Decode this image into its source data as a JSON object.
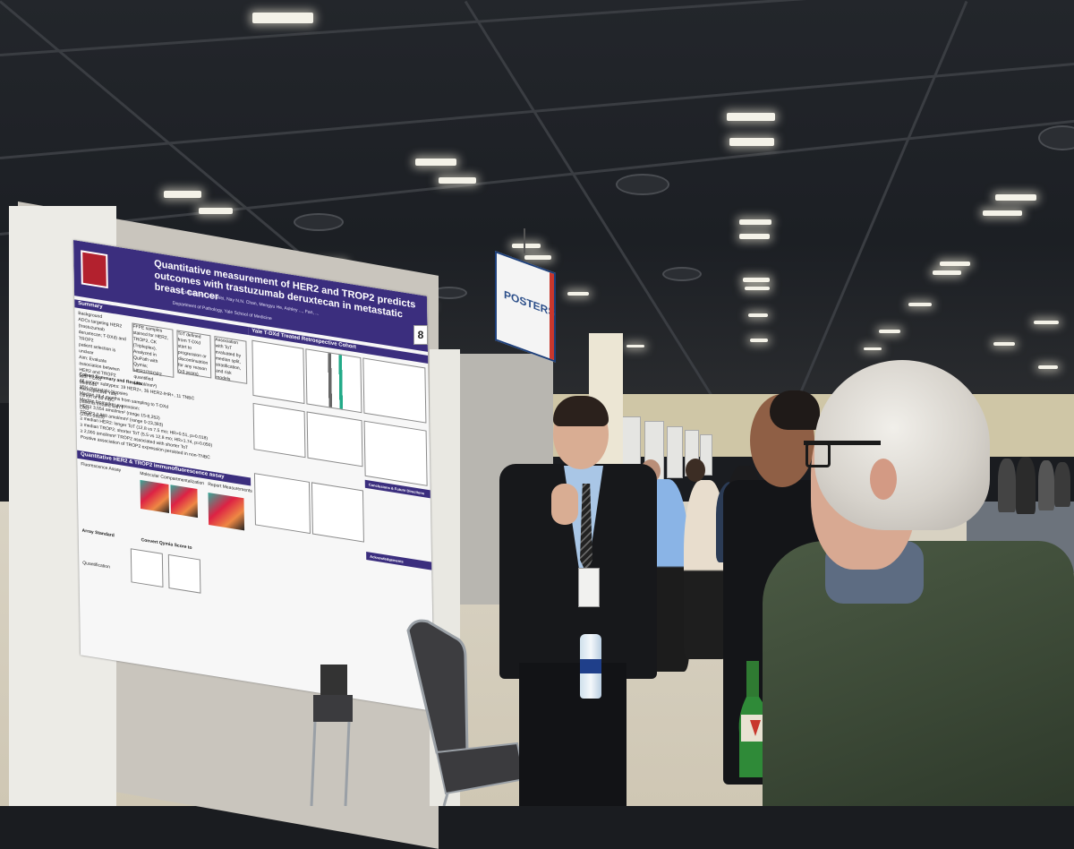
{
  "scene": {
    "board_number": "8",
    "hanging_sign": "POSTERS"
  },
  "poster": {
    "title": "Quantitative measurement of HER2 and TROP2 predicts outcomes with trastuzumab deruxtecan in metastatic breast cancer",
    "authors": "C. Jack Robbins, Wei Wei, Nay N.N. Chan, Mengyu He, Ashley ..., Fan, ...",
    "affiliation": "Department of Pathology, Yale School of Medicine",
    "sections": {
      "summary": "Summary",
      "yale_cohort": "Yale T-DXd Treated Retrospective Cohort",
      "assay": "Quantitative HER2 & TROP2 immunofluorescence assay",
      "conclusions": "Conclusions & Future Directions",
      "acknowledgements": "Acknowledgements"
    },
    "left_column": [
      "Background",
      "ADCs targeting HER2 (trastuzumab deruxtecan; T-DXd) and TROP2",
      "patient selection is unclear",
      "Aim: Evaluate association between HER2 and TROP2",
      "with T-DXd",
      "Methods",
      "Retrospective Yale cohort of 65 mBC",
      "patients treated with T-DXd",
      "(2020-2023)",
      "Cohort Summary and Results",
      "All cancer subtypes: 19 HER2+, 35 HER2-/HR+, 11 TNBC",
      "35% metastatic biopsies",
      "Median 18.4 months from sampling to T-DXd",
      "Median biomarker expression:",
      "HER2 3,554 amol/mm² (range 15-8,252)",
      "TROP2 2,868 amol/mm² (range 0-23,383)",
      "≥ median HER2: longer ToT (12.8 vs 7.5 mo; HR=0.51, p=0.018)",
      "≥ median TROP2: shorter ToT (5.5 vs 12.8 mo; HR=1.74, p=0.050)",
      "≥ 2,000 amol/mm² TROP2 associated with shorter ToT",
      "Positive association of TROP2 expression persisted in non-TNBC"
    ],
    "assay_labels": {
      "fluorescence": "Fluorescence Assay",
      "compartment": "Molecular Compartmentalization",
      "report": "Report Measurements",
      "standard": "Array Standard",
      "convert": "Convert Qymia Score to",
      "quant": "Quantification"
    },
    "flow": {
      "ffpe": "FFPE samples stained for HER2, TROP2, CK (Tripleplex). Analyzed in QuPath with Qymia; HER2/TROP2 quantified (amol/mm²)",
      "tot": "ToT defined from T-DXd start to progression or discontinuation for any reason (≥3 years)",
      "assoc": "Association with ToT evaluated by median split, stratification, and risk models"
    }
  },
  "people": [
    {
      "role": "presenter",
      "description_hidden": true
    },
    {
      "role": "attendee-left"
    },
    {
      "role": "attendee-right"
    }
  ],
  "colors": {
    "poster_header": "#3b2e7e",
    "sign_border": "#1d3f7a",
    "sign_accent": "#c8372d"
  }
}
